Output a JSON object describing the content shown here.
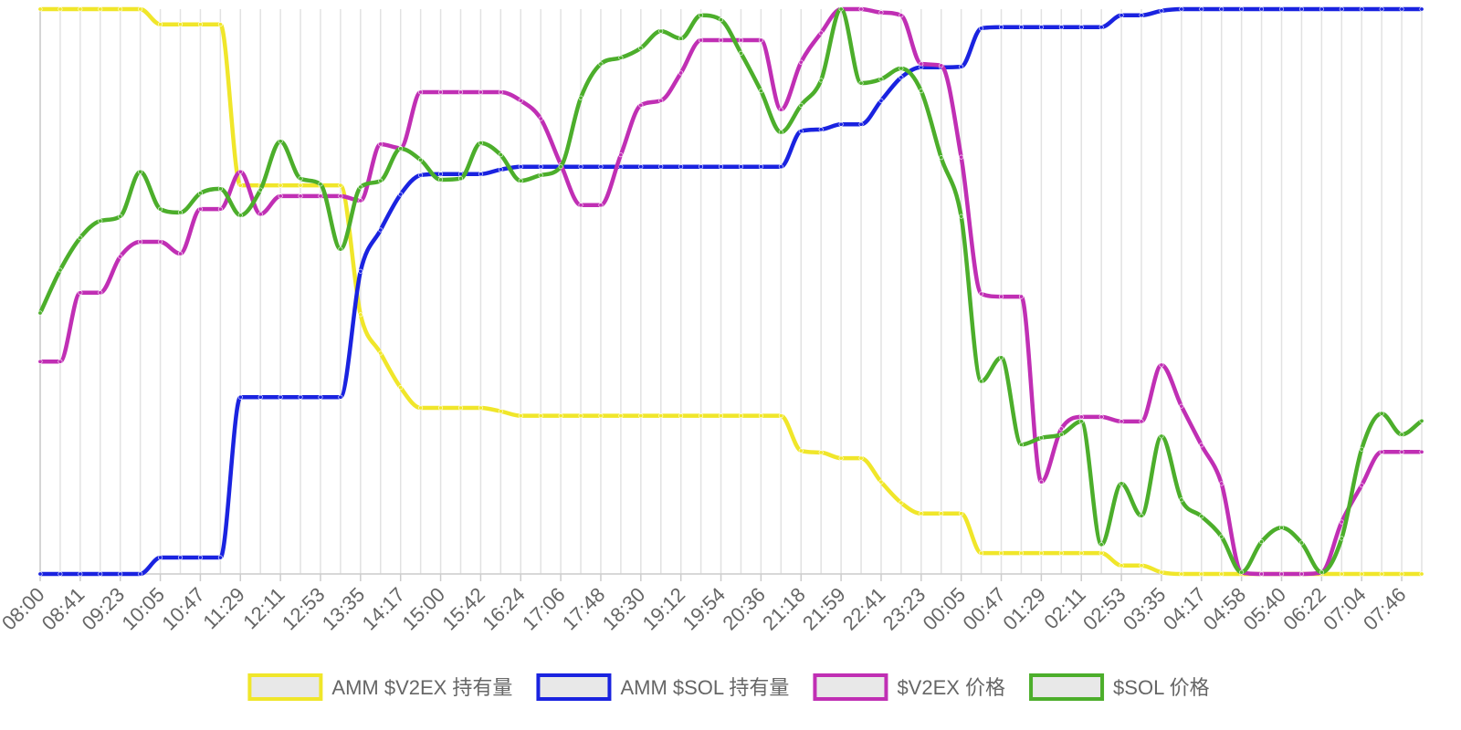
{
  "chart_data": {
    "type": "line",
    "categories": [
      "08:00",
      null,
      "08:41",
      null,
      "09:23",
      null,
      "10:05",
      null,
      "10:47",
      null,
      "11:29",
      null,
      "12:11",
      null,
      "12:53",
      null,
      "13:35",
      null,
      "14:17",
      null,
      "15:00",
      null,
      "15:42",
      null,
      "16:24",
      null,
      "17:06",
      null,
      "17:48",
      null,
      "18:30",
      null,
      "19:12",
      null,
      "19:54",
      null,
      "20:36",
      null,
      "21:18",
      null,
      "21:59",
      null,
      "22:41",
      null,
      "23:23",
      null,
      "00:05",
      null,
      "00:47",
      null,
      "01:29",
      null,
      "02:11",
      null,
      "02:53",
      null,
      "03:35",
      null,
      "04:17",
      null,
      "04:58",
      null,
      "05:40",
      null,
      "06:22",
      null,
      "07:04",
      null,
      "07:46",
      null
    ],
    "ylim": [
      0,
      100
    ],
    "grid": true,
    "legend": "bottom",
    "series": [
      {
        "name": "AMM $V2EX 持有量",
        "color": "#f0e62a",
        "values": [
          100,
          100,
          100,
          100,
          100,
          100,
          97.3,
          97.3,
          97.3,
          97.3,
          68.8,
          68.8,
          68.8,
          68.8,
          68.8,
          68.8,
          45.9,
          39.1,
          33.0,
          29.4,
          29.4,
          29.4,
          29.4,
          28.8,
          28.0,
          28.0,
          28.0,
          28.0,
          28.0,
          28.0,
          28.0,
          28.0,
          28.0,
          28.0,
          28.0,
          28.0,
          28.0,
          28.0,
          21.8,
          21.5,
          20.5,
          20.5,
          16.3,
          12.6,
          10.7,
          10.7,
          10.7,
          3.7,
          3.7,
          3.7,
          3.7,
          3.7,
          3.7,
          3.7,
          1.5,
          1.5,
          0.3,
          0,
          0,
          0,
          0,
          0,
          0,
          0,
          0,
          0,
          0,
          0,
          0,
          0
        ]
      },
      {
        "name": "AMM $SOL 持有量",
        "color": "#1a23e0",
        "values": [
          0,
          0,
          0,
          0,
          0,
          0,
          2.9,
          2.9,
          2.9,
          2.9,
          31.3,
          31.3,
          31.3,
          31.3,
          31.3,
          31.3,
          53.6,
          60.9,
          67.2,
          70.6,
          70.8,
          70.8,
          70.8,
          71.6,
          72.1,
          72.1,
          72.1,
          72.1,
          72.1,
          72.1,
          72.1,
          72.1,
          72.1,
          72.1,
          72.1,
          72.1,
          72.1,
          72.1,
          78.4,
          78.7,
          79.6,
          79.6,
          83.8,
          87.9,
          89.7,
          89.7,
          89.8,
          96.6,
          96.8,
          96.8,
          96.8,
          96.8,
          96.8,
          96.8,
          98.9,
          98.9,
          99.7,
          100,
          100,
          100,
          100,
          100,
          100,
          100,
          100,
          100,
          100,
          100,
          100,
          100
        ]
      },
      {
        "name": "$V2EX 价格",
        "color": "#c02fb4",
        "values": [
          37.6,
          37.6,
          49.8,
          49.8,
          56.2,
          58.8,
          58.8,
          56.7,
          64.6,
          64.6,
          71.2,
          63.7,
          66.9,
          66.9,
          66.9,
          66.9,
          66.1,
          76.1,
          75.4,
          85.3,
          85.3,
          85.3,
          85.3,
          85.3,
          83.8,
          80.6,
          72.5,
          65.3,
          65.3,
          74.2,
          83.0,
          83.8,
          88.7,
          94.5,
          94.5,
          94.5,
          94.5,
          82.2,
          90.6,
          95.8,
          100,
          100,
          99.4,
          98.9,
          90.3,
          90.0,
          73.8,
          49.6,
          49.1,
          49.1,
          16.3,
          25.7,
          27.8,
          27.8,
          27.0,
          27.0,
          37.0,
          29.7,
          22.8,
          16.0,
          0.3,
          0,
          0,
          0,
          0.3,
          9.2,
          15.7,
          21.6,
          21.6,
          21.6
        ]
      },
      {
        "name": "$SOL 价格",
        "color": "#4cae2b",
        "values": [
          46.2,
          53.8,
          59.5,
          62.5,
          63.3,
          71.2,
          64.6,
          64.0,
          67.4,
          68.2,
          63.5,
          68.0,
          76.6,
          70.0,
          69.0,
          57.5,
          68.5,
          69.6,
          75.3,
          73.3,
          69.8,
          70.0,
          76.3,
          74.2,
          69.6,
          70.6,
          72.1,
          84.3,
          90.3,
          91.4,
          93.1,
          96.1,
          94.8,
          98.9,
          98.1,
          92.2,
          85.5,
          78.2,
          83.0,
          87.4,
          100,
          86.9,
          87.6,
          89.5,
          85.5,
          73.7,
          63.3,
          34.1,
          38.3,
          22.9,
          24.1,
          24.7,
          27.0,
          5.2,
          16.0,
          10.3,
          24.4,
          13.1,
          10.2,
          6.6,
          0.3,
          5.7,
          8.2,
          5.5,
          0.3,
          6.3,
          22.1,
          28.4,
          24.7,
          27.1
        ]
      }
    ]
  }
}
